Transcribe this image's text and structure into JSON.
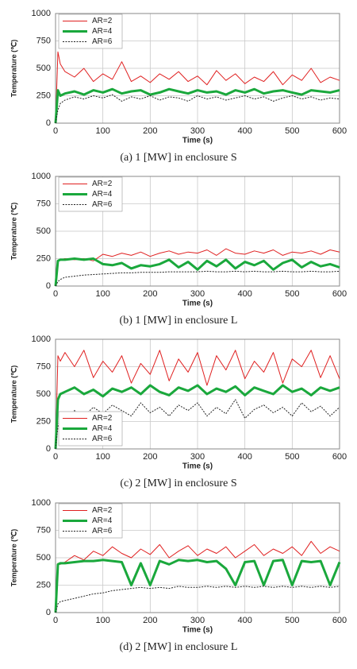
{
  "chart_data": [
    {
      "type": "line",
      "caption": "(a)  1  [MW]  in  enclosure  S",
      "xlabel": "Time (s)",
      "ylabel": "Temperature (℃)",
      "xlim": [
        0,
        600
      ],
      "xticks": [
        0,
        100,
        200,
        300,
        400,
        500,
        600
      ],
      "ylim": [
        0,
        1000
      ],
      "yticks": [
        0,
        250,
        500,
        750,
        1000
      ],
      "grid": true,
      "legend": "upper left",
      "x": [
        0,
        5,
        10,
        20,
        40,
        60,
        80,
        100,
        120,
        140,
        160,
        180,
        200,
        220,
        240,
        260,
        280,
        300,
        320,
        340,
        360,
        380,
        400,
        420,
        440,
        460,
        480,
        500,
        520,
        540,
        560,
        580,
        600
      ],
      "series": [
        {
          "name": "AR=2",
          "color": "#e02020",
          "linestyle": "solid",
          "values": [
            0,
            650,
            540,
            470,
            420,
            500,
            380,
            450,
            400,
            560,
            380,
            430,
            370,
            450,
            400,
            470,
            380,
            430,
            350,
            480,
            390,
            450,
            360,
            420,
            380,
            470,
            350,
            440,
            390,
            500,
            370,
            420,
            390
          ]
        },
        {
          "name": "AR=4",
          "color": "#1aa83c",
          "linestyle": "solid",
          "values": [
            0,
            300,
            250,
            270,
            290,
            260,
            300,
            280,
            310,
            270,
            290,
            300,
            260,
            280,
            310,
            290,
            270,
            300,
            280,
            290,
            260,
            300,
            280,
            310,
            270,
            290,
            300,
            280,
            260,
            300,
            290,
            280,
            300
          ]
        },
        {
          "name": "AR=6",
          "color": "#222222",
          "linestyle": "dotted",
          "values": [
            0,
            120,
            180,
            210,
            240,
            220,
            250,
            230,
            260,
            200,
            240,
            220,
            250,
            210,
            240,
            230,
            200,
            250,
            220,
            240,
            210,
            230,
            250,
            220,
            240,
            200,
            230,
            250,
            220,
            240,
            210,
            230,
            220
          ]
        }
      ]
    },
    {
      "type": "line",
      "caption": "(b)  1  [MW]  in  enclosure  L",
      "xlabel": "Time (s)",
      "ylabel": "Temperature (℃)",
      "xlim": [
        0,
        600
      ],
      "xticks": [
        0,
        100,
        200,
        300,
        400,
        500,
        600
      ],
      "ylim": [
        0,
        1000
      ],
      "yticks": [
        0,
        250,
        500,
        750,
        1000
      ],
      "grid": true,
      "legend": "upper left",
      "x": [
        0,
        5,
        10,
        20,
        40,
        60,
        80,
        100,
        120,
        140,
        160,
        180,
        200,
        220,
        240,
        260,
        280,
        300,
        320,
        340,
        360,
        380,
        400,
        420,
        440,
        460,
        480,
        500,
        520,
        540,
        560,
        580,
        600
      ],
      "series": [
        {
          "name": "AR=2",
          "color": "#e02020",
          "linestyle": "solid",
          "values": [
            0,
            230,
            240,
            250,
            240,
            250,
            230,
            290,
            270,
            300,
            280,
            310,
            270,
            300,
            320,
            290,
            310,
            300,
            330,
            280,
            340,
            300,
            290,
            320,
            300,
            330,
            280,
            310,
            300,
            320,
            290,
            330,
            310
          ]
        },
        {
          "name": "AR=4",
          "color": "#1aa83c",
          "linestyle": "solid",
          "values": [
            0,
            230,
            240,
            240,
            250,
            240,
            250,
            200,
            190,
            210,
            160,
            190,
            180,
            200,
            240,
            170,
            220,
            150,
            230,
            180,
            240,
            160,
            220,
            190,
            230,
            150,
            210,
            240,
            170,
            220,
            180,
            200,
            170
          ]
        },
        {
          "name": "AR=6",
          "color": "#222222",
          "linestyle": "dotted",
          "values": [
            0,
            40,
            60,
            80,
            90,
            100,
            105,
            110,
            115,
            120,
            120,
            125,
            125,
            125,
            130,
            130,
            130,
            130,
            135,
            130,
            130,
            135,
            130,
            135,
            130,
            130,
            135,
            130,
            130,
            135,
            130,
            130,
            135
          ]
        }
      ]
    },
    {
      "type": "line",
      "caption": "(c)  2  [MW]  in  enclosure  S",
      "xlabel": "Time (s)",
      "ylabel": "Temperature (℃)",
      "xlim": [
        0,
        600
      ],
      "xticks": [
        0,
        100,
        200,
        300,
        400,
        500,
        600
      ],
      "ylim": [
        0,
        1000
      ],
      "yticks": [
        0,
        250,
        500,
        750,
        1000
      ],
      "grid": true,
      "legend": "lower left",
      "x": [
        0,
        5,
        10,
        20,
        40,
        60,
        80,
        100,
        120,
        140,
        160,
        180,
        200,
        220,
        240,
        260,
        280,
        300,
        320,
        340,
        360,
        380,
        400,
        420,
        440,
        460,
        480,
        500,
        520,
        540,
        560,
        580,
        600
      ],
      "series": [
        {
          "name": "AR=2",
          "color": "#e02020",
          "linestyle": "solid",
          "values": [
            0,
            850,
            800,
            880,
            750,
            900,
            650,
            800,
            700,
            850,
            600,
            780,
            680,
            900,
            620,
            820,
            700,
            880,
            580,
            850,
            720,
            900,
            640,
            800,
            700,
            880,
            600,
            820,
            750,
            900,
            650,
            850,
            640
          ]
        },
        {
          "name": "AR=4",
          "color": "#1aa83c",
          "linestyle": "solid",
          "values": [
            0,
            450,
            500,
            520,
            560,
            500,
            540,
            480,
            550,
            520,
            560,
            500,
            580,
            520,
            490,
            560,
            530,
            580,
            500,
            550,
            520,
            570,
            490,
            560,
            530,
            500,
            580,
            520,
            550,
            490,
            560,
            530,
            560
          ]
        },
        {
          "name": "AR=6",
          "color": "#222222",
          "linestyle": "dotted",
          "values": [
            0,
            200,
            300,
            280,
            350,
            300,
            380,
            320,
            400,
            350,
            300,
            420,
            330,
            380,
            300,
            400,
            350,
            420,
            300,
            380,
            320,
            450,
            280,
            360,
            400,
            330,
            380,
            300,
            420,
            340,
            390,
            300,
            380
          ]
        }
      ]
    },
    {
      "type": "line",
      "caption": "(d)  2  [MW]  in  enclosure  L",
      "xlabel": "Time (s)",
      "ylabel": "Temperature (℃)",
      "xlim": [
        0,
        600
      ],
      "xticks": [
        0,
        100,
        200,
        300,
        400,
        500,
        600
      ],
      "ylim": [
        0,
        1000
      ],
      "yticks": [
        0,
        250,
        500,
        750,
        1000
      ],
      "grid": true,
      "legend": "upper left",
      "x": [
        0,
        5,
        10,
        20,
        40,
        60,
        80,
        100,
        120,
        140,
        160,
        180,
        200,
        220,
        240,
        260,
        280,
        300,
        320,
        340,
        360,
        380,
        400,
        420,
        440,
        460,
        480,
        500,
        520,
        540,
        560,
        580,
        600
      ],
      "series": [
        {
          "name": "AR=2",
          "color": "#e02020",
          "linestyle": "solid",
          "values": [
            0,
            450,
            440,
            460,
            520,
            480,
            560,
            520,
            600,
            540,
            500,
            580,
            530,
            620,
            500,
            560,
            610,
            520,
            580,
            540,
            600,
            500,
            560,
            620,
            520,
            580,
            540,
            600,
            520,
            650,
            540,
            600,
            560
          ]
        },
        {
          "name": "AR=4",
          "color": "#1aa83c",
          "linestyle": "solid",
          "values": [
            0,
            440,
            450,
            450,
            460,
            470,
            470,
            480,
            470,
            460,
            250,
            450,
            250,
            470,
            440,
            480,
            470,
            480,
            460,
            470,
            400,
            250,
            460,
            470,
            250,
            470,
            480,
            250,
            470,
            460,
            470,
            250,
            460
          ]
        },
        {
          "name": "AR=6",
          "color": "#222222",
          "linestyle": "dotted",
          "values": [
            0,
            80,
            100,
            110,
            130,
            150,
            170,
            180,
            200,
            210,
            220,
            230,
            220,
            230,
            220,
            240,
            230,
            230,
            240,
            230,
            240,
            230,
            240,
            230,
            240,
            230,
            240,
            230,
            240,
            230,
            240,
            230,
            240
          ]
        }
      ]
    }
  ]
}
